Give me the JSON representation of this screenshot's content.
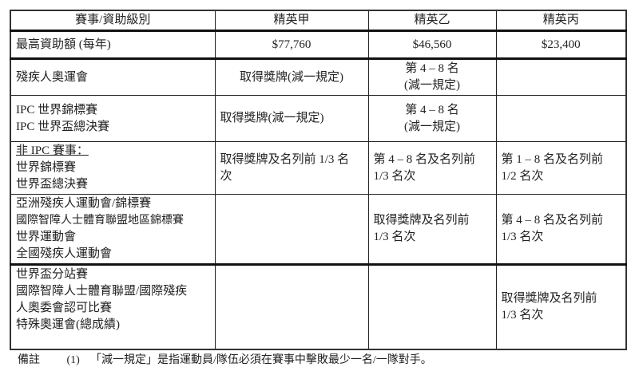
{
  "table": {
    "headers": [
      "賽事/資助級別",
      "精英甲",
      "精英乙",
      "精英丙"
    ],
    "funding_row": {
      "label": "最高資助額 (每年)",
      "values": [
        "$77,760",
        "$46,560",
        "$23,400"
      ]
    },
    "rows": [
      {
        "events": [
          "殘疾人奧運會"
        ],
        "a": [
          "取得獎牌(減一規定)"
        ],
        "b": [
          "第 4 – 8 名",
          "(減一規定)"
        ],
        "c": []
      },
      {
        "events": [
          "IPC 世界錦標賽",
          "IPC 世界盃總決賽"
        ],
        "a": [
          "取得獎牌(減一規定)"
        ],
        "b": [
          "第 4 – 8 名",
          "(減一規定)"
        ],
        "c": []
      },
      {
        "events_heading": "非 IPC 賽事：",
        "events": [
          "世界錦標賽",
          "世界盃總決賽"
        ],
        "a": [
          "取得獎牌及名列前 1/3 名",
          "次"
        ],
        "b": [
          "第 4 – 8 名及名列前",
          "1/3 名次"
        ],
        "c": [
          "第 1 – 8 名及名列前",
          "1/2 名次"
        ]
      },
      {
        "events": [
          "亞洲殘疾人運動會/錦標賽",
          "國際智障人士體育聯盟地區錦標賽",
          "世界運動會",
          "全國殘疾人運動會"
        ],
        "a": [],
        "b": [
          "取得獎牌及名列前",
          "1/3 名次"
        ],
        "c": [
          "第 4 – 8 名及名列前",
          "1/3 名次"
        ]
      },
      {
        "events": [
          "世界盃分站賽",
          "國際智障人士體育聯盟/國際殘疾",
          "人奧委會認可比賽",
          "特殊奧運會(總成績)"
        ],
        "a": [],
        "b": [],
        "c": [
          "取得獎牌及名列前",
          "1/3  名次"
        ]
      }
    ]
  },
  "note": {
    "label": "備註",
    "number": "(1)",
    "text": "「減一規定」是指運動員/隊伍必須在賽事中擊敗最少一名/一隊對手。"
  }
}
